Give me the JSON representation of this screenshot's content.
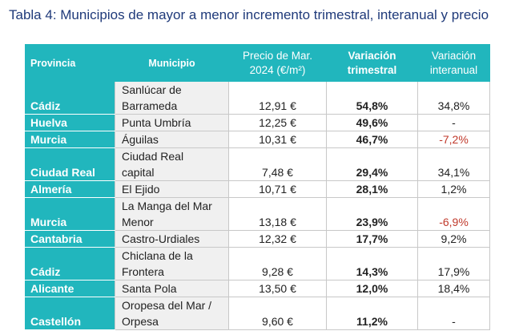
{
  "title": "Tabla 4: Municipios de mayor a menor incremento trimestral, interanual y precio",
  "headers": {
    "provincia": "Provincia",
    "municipio": "Municipio",
    "precio_line1": "Precio de Mar.",
    "precio_line2": "2024 (€/m²)",
    "trim_line1": "Variación",
    "trim_line2": "trimestral",
    "inter_line1": "Variación",
    "inter_line2": "interanual"
  },
  "rows": [
    {
      "provincia": "Cádiz",
      "municipio_l1": "Sanlúcar de",
      "municipio_l2": "Barrameda",
      "precio": "12,91 €",
      "trimestral": "54,8%",
      "interanual": "34,8%"
    },
    {
      "provincia": "Huelva",
      "municipio": "Punta Umbría",
      "precio": "12,25 €",
      "trimestral": "49,6%",
      "interanual": "-"
    },
    {
      "provincia": "Murcia",
      "municipio": "Águilas",
      "precio": "10,31 €",
      "trimestral": "46,7%",
      "interanual": "-7,2%"
    },
    {
      "provincia": "Ciudad Real",
      "municipio_l1": "Ciudad Real",
      "municipio_l2": "capital",
      "precio": "7,48 €",
      "trimestral": "29,4%",
      "interanual": "34,1%"
    },
    {
      "provincia": "Almería",
      "municipio": "El Ejido",
      "precio": "10,71 €",
      "trimestral": "28,1%",
      "interanual": "1,2%"
    },
    {
      "provincia": "Murcia",
      "municipio_l1": "La Manga del Mar",
      "municipio_l2": "Menor",
      "precio": "13,18 €",
      "trimestral": "23,9%",
      "interanual": "-6,9%"
    },
    {
      "provincia": "Cantabria",
      "municipio": "Castro-Urdiales",
      "precio": "12,32 €",
      "trimestral": "17,7%",
      "interanual": "9,2%"
    },
    {
      "provincia": "Cádiz",
      "municipio_l1": "Chiclana de la",
      "municipio_l2": "Frontera",
      "precio": "9,28 €",
      "trimestral": "14,3%",
      "interanual": "17,9%"
    },
    {
      "provincia": "Alicante",
      "municipio": "Santa Pola",
      "precio": "13,50 €",
      "trimestral": "12,0%",
      "interanual": "18,4%"
    },
    {
      "provincia": "Castellón",
      "municipio_l1": "Oropesa del Mar /",
      "municipio_l2": "Orpesa",
      "precio": "9,60 €",
      "trimestral": "11,2%",
      "interanual": "-"
    }
  ],
  "colors": {
    "header_bg": "#21b6bd",
    "title": "#1f3a7a",
    "negative": "#c0392b",
    "municipio_bg": "#f0f0f0"
  }
}
